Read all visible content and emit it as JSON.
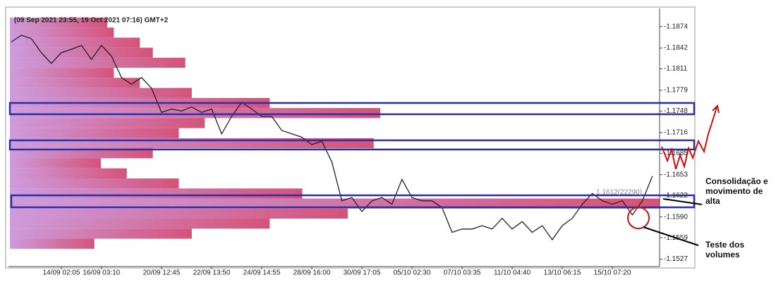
{
  "chart_data": {
    "type": "line",
    "title": "(09 Sep 2021 23:55, 19 Oct 2021 07:16) GMT+2",
    "categories": [
      null,
      null,
      null,
      null,
      null,
      "14/09 02:05",
      null,
      null,
      null,
      "16/09 03:10",
      null,
      null,
      null,
      null,
      null,
      "20/09 12:45",
      null,
      null,
      null,
      null,
      "22/09 13:50",
      null,
      null,
      null,
      null,
      "24/09 14:55",
      null,
      null,
      null,
      null,
      "28/09 16:00",
      null,
      null,
      null,
      null,
      "30/09 17:05",
      null,
      null,
      null,
      null,
      "05/10 02:30",
      null,
      null,
      null,
      null,
      "07/10 03:35",
      null,
      null,
      null,
      null,
      "11/10 04:40",
      null,
      null,
      null,
      null,
      "13/10 06:15",
      null,
      null,
      null,
      null,
      "15/10 07:20",
      null,
      null,
      null,
      null
    ],
    "series": [
      {
        "color": "#222222",
        "values": [
          1.1851,
          1.1861,
          1.1856,
          1.1835,
          1.1819,
          1.1835,
          1.184,
          1.1846,
          1.1825,
          1.1846,
          1.183,
          1.1798,
          1.1788,
          1.1798,
          1.1782,
          1.1746,
          1.1751,
          1.1748,
          1.1754,
          1.1746,
          1.1751,
          1.1714,
          1.174,
          1.1761,
          1.1751,
          1.174,
          1.174,
          1.1719,
          1.1714,
          1.1709,
          1.1698,
          1.1703,
          1.1672,
          1.1614,
          1.1619,
          1.1598,
          1.1614,
          1.1619,
          1.1609,
          1.1646,
          1.1619,
          1.1614,
          1.1614,
          1.1604,
          1.1567,
          1.1572,
          1.1572,
          1.1577,
          1.1572,
          1.1588,
          1.1572,
          1.1583,
          1.1567,
          1.1577,
          1.1556,
          1.1577,
          1.1588,
          1.1609,
          1.1625,
          1.1614,
          1.1609,
          1.1614,
          1.1593,
          1.1614,
          1.1651
        ]
      }
    ],
    "volume_profile": {
      "color": "#d0406a",
      "prices": [
        1.188,
        1.1865,
        1.185,
        1.1835,
        1.182,
        1.1805,
        1.179,
        1.1775,
        1.176,
        1.1745,
        1.173,
        1.1715,
        1.17,
        1.1685,
        1.167,
        1.1655,
        1.164,
        1.1625,
        1.161,
        1.1595,
        1.158,
        1.1565,
        1.155
      ],
      "values": [
        15,
        16,
        20,
        22,
        27,
        16,
        20,
        28,
        40,
        57,
        30,
        26,
        56,
        22,
        14,
        18,
        26,
        45,
        100,
        52,
        40,
        28,
        13
      ]
    },
    "ylim": [
      1.1901,
      1.1516
    ],
    "yticks": [
      1.1874,
      1.1842,
      1.1811,
      1.1779,
      1.1748,
      1.1716,
      1.1685,
      1.1653,
      1.1622,
      {
        "value": 1.159,
        "label": "1.1590"
      },
      1.1559,
      1.1527
    ],
    "annotations": [
      "1.1612(22290)",
      "Consolidação e movimento de alta",
      "Teste dos volumes"
    ]
  }
}
